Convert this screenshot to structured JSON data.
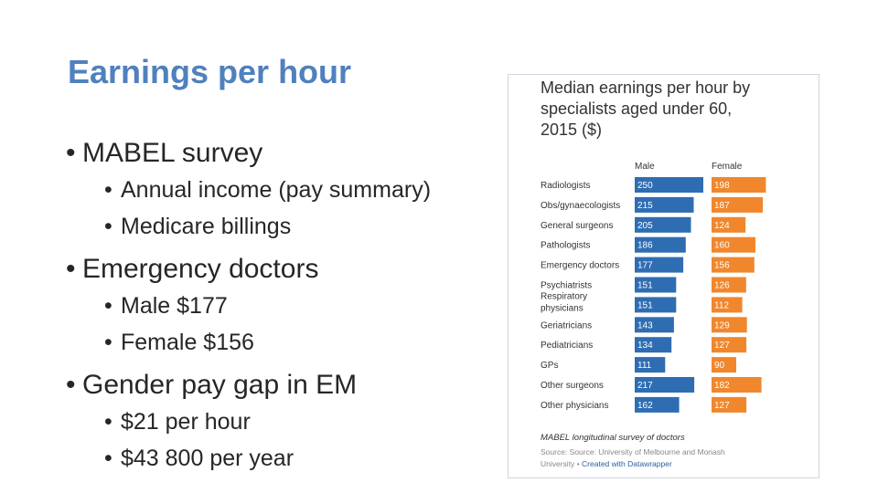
{
  "slide": {
    "title": "Earnings per hour",
    "bullets": [
      {
        "text": "MABEL survey",
        "sub": [
          "Annual income (pay summary)",
          "Medicare billings"
        ]
      },
      {
        "text": "Emergency doctors",
        "sub": [
          "Male $177",
          "Female $156"
        ]
      },
      {
        "text": "Gender pay gap in EM",
        "sub": [
          "$21 per hour",
          "$43 800 per year"
        ]
      }
    ]
  },
  "chart_data": {
    "type": "bar",
    "orientation": "horizontal",
    "title_lines": [
      "Median earnings per hour by",
      "specialists aged under 60,",
      "2015 ($)"
    ],
    "categories": [
      [
        "Radiologists"
      ],
      [
        "Obs/gynaecologists"
      ],
      [
        "General surgeons"
      ],
      [
        "Pathologists"
      ],
      [
        "Emergency doctors"
      ],
      [
        "Psychiatrists"
      ],
      [
        "Respiratory",
        "physicians"
      ],
      [
        "Geriatricians"
      ],
      [
        "Pediatricians"
      ],
      [
        "GPs"
      ],
      [
        "Other surgeons"
      ],
      [
        "Other physicians"
      ]
    ],
    "series": [
      {
        "name": "Male",
        "color": "#2f6db3",
        "values": [
          250,
          215,
          205,
          186,
          177,
          151,
          151,
          143,
          134,
          111,
          217,
          162
        ]
      },
      {
        "name": "Female",
        "color": "#f0872d",
        "values": [
          198,
          187,
          124,
          160,
          156,
          126,
          112,
          129,
          127,
          90,
          182,
          127
        ]
      }
    ],
    "xlim": [
      0,
      250
    ],
    "legend": "column headers",
    "grid": false,
    "note": "MABEL longitudinal survey of doctors",
    "source_text": "Source: Source: University of Melbourne and Monash",
    "source_text_2": "University",
    "source_sep": "•",
    "source_link": "Created with Datawrapper"
  }
}
